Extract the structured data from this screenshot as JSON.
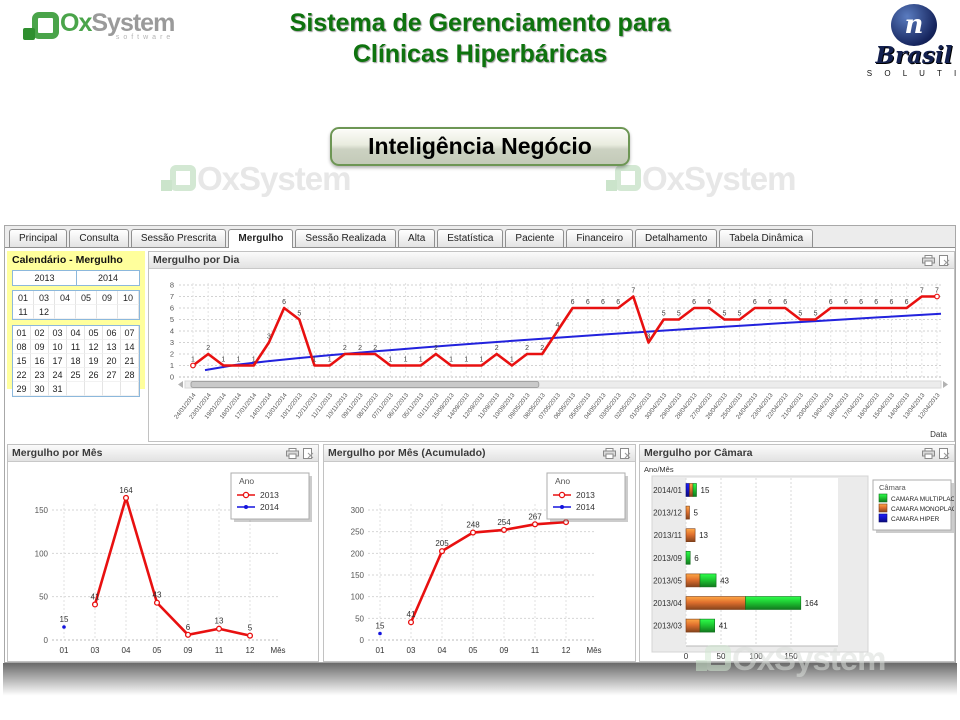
{
  "slide": {
    "title_line1": "Sistema de Gerenciamento para",
    "title_line2": "Clínicas Hiperbáricas",
    "button_label": "Inteligência Negócio",
    "watermark_text": "OxSystem"
  },
  "logo_left": {
    "prefix": "Ox",
    "suffix": "System",
    "sub": "software"
  },
  "logo_right": {
    "mark": "n",
    "name": "Brasil",
    "sub": "S O L U T I"
  },
  "tabs": {
    "items": [
      "Principal",
      "Consulta",
      "Sessão Prescrita",
      "Mergulho",
      "Sessão Realizada",
      "Alta",
      "Estatística",
      "Paciente",
      "Financeiro",
      "Detalhamento",
      "Tabela Dinâmica"
    ],
    "active": "Mergulho"
  },
  "calendar": {
    "title": "Calendário - Mergulho",
    "years": [
      "2013",
      "2014"
    ],
    "months": [
      "01",
      "03",
      "04",
      "05",
      "09",
      "10",
      "11",
      "12"
    ],
    "days": [
      "01",
      "02",
      "03",
      "04",
      "05",
      "06",
      "07",
      "08",
      "09",
      "10",
      "11",
      "12",
      "13",
      "14",
      "15",
      "16",
      "17",
      "18",
      "19",
      "20",
      "21",
      "22",
      "23",
      "24",
      "25",
      "26",
      "27",
      "28",
      "29",
      "30",
      "31"
    ]
  },
  "chart_data": [
    {
      "id": "daily",
      "type": "line",
      "title": "Mergulho por Dia",
      "xlabel": "Data",
      "ylim": [
        0,
        8
      ],
      "yticks": [
        0,
        1,
        2,
        3,
        4,
        5,
        6,
        7,
        8
      ],
      "categories": [
        "24/01/2014",
        "23/01/2014",
        "19/01/2014",
        "18/01/2014",
        "17/01/2014",
        "14/01/2014",
        "13/01/2014",
        "10/12/2013",
        "12/11/2013",
        "11/11/2013",
        "10/11/2013",
        "09/11/2013",
        "08/11/2013",
        "07/11/2013",
        "06/11/2013",
        "05/11/2013",
        "01/11/2013",
        "15/09/2013",
        "14/09/2013",
        "12/09/2013",
        "11/09/2013",
        "10/09/2013",
        "09/05/2013",
        "08/05/2013",
        "07/05/2013",
        "06/05/2013",
        "05/05/2013",
        "04/05/2013",
        "03/05/2013",
        "02/05/2013",
        "01/05/2013",
        "30/04/2013",
        "29/04/2013",
        "28/04/2013",
        "27/04/2013",
        "26/04/2013",
        "25/04/2013",
        "24/04/2013",
        "23/04/2013",
        "22/04/2013",
        "21/04/2013",
        "20/04/2013",
        "19/04/2013",
        "18/04/2013",
        "17/04/2013",
        "16/04/2013",
        "15/04/2013",
        "14/04/2013",
        "13/04/2013",
        "12/04/2013"
      ],
      "series": {
        "color": "#e81010",
        "values": [
          1,
          2,
          1,
          1,
          1,
          3,
          6,
          5,
          1,
          1,
          2,
          2,
          2,
          1,
          1,
          1,
          2,
          1,
          1,
          1,
          2,
          1,
          2,
          2,
          4,
          6,
          6,
          6,
          6,
          7,
          3,
          5,
          5,
          6,
          6,
          5,
          5,
          6,
          6,
          6,
          5,
          5,
          6,
          6,
          6,
          6,
          6,
          6,
          7,
          7
        ]
      },
      "trend_line": {
        "color": "#2222dd",
        "from": 0.6,
        "to": 5.5
      },
      "scrollbar": {
        "thumb_fraction": 0.46
      }
    },
    {
      "id": "monthly",
      "type": "line",
      "title": "Mergulho por Mês",
      "xlabel": "Mês",
      "legend_title": "Ano",
      "yticks": [
        0,
        50,
        100,
        150
      ],
      "categories": [
        "01",
        "03",
        "04",
        "05",
        "09",
        "11",
        "12"
      ],
      "series": [
        {
          "name": "2013",
          "color": "#e81010",
          "points": {
            "03": 41,
            "04": 164,
            "05": 43,
            "09": 6,
            "11": 13,
            "12": 5
          }
        },
        {
          "name": "2014",
          "color": "#1414dd",
          "points": {
            "01": 15
          }
        }
      ]
    },
    {
      "id": "monthly_acc",
      "type": "line",
      "title": "Mergulho por Mês (Acumulado)",
      "xlabel": "Mês",
      "legend_title": "Ano",
      "yticks": [
        0,
        50,
        100,
        150,
        200,
        250,
        300
      ],
      "categories": [
        "01",
        "03",
        "04",
        "05",
        "09",
        "11",
        "12"
      ],
      "series": [
        {
          "name": "2013",
          "color": "#e81010",
          "points": {
            "03": 41,
            "04": 205,
            "05": 248,
            "09": 254,
            "11": 267,
            "12": 272
          }
        },
        {
          "name": "2014",
          "color": "#1414dd",
          "points": {
            "01": 15
          }
        }
      ]
    },
    {
      "id": "camara",
      "type": "stacked_bar_horizontal",
      "title": "Mergulho por Câmara",
      "ylabel": "Ano/Mês",
      "legend_title": "Câmara",
      "xticks": [
        0,
        50,
        100,
        150
      ],
      "legend": [
        {
          "name": "CAMARA MULTIPLACE",
          "color": "#1ec832"
        },
        {
          "name": "CAMARA MONOPLACE",
          "color": "#e0702e"
        },
        {
          "name": "CAMARA HIPER",
          "color": "#1414cc"
        }
      ],
      "rows": [
        {
          "label": "2014/01",
          "total": 15,
          "segments": [
            {
              "name": "CAMARA HIPER",
              "value": 5
            },
            {
              "name": "CAMARA MONOPLACE",
              "value": 5
            },
            {
              "name": "CAMARA MULTIPLACE",
              "value": 5
            }
          ]
        },
        {
          "label": "2013/12",
          "total": 5,
          "segments": [
            {
              "name": "CAMARA MONOPLACE",
              "value": 5
            }
          ]
        },
        {
          "label": "2013/11",
          "total": 13,
          "segments": [
            {
              "name": "CAMARA MONOPLACE",
              "value": 13
            }
          ]
        },
        {
          "label": "2013/09",
          "total": 6,
          "segments": [
            {
              "name": "CAMARA MULTIPLACE",
              "value": 6
            }
          ]
        },
        {
          "label": "2013/05",
          "total": 43,
          "segments": [
            {
              "name": "CAMARA MONOPLACE",
              "value": 20
            },
            {
              "name": "CAMARA MULTIPLACE",
              "value": 23
            }
          ]
        },
        {
          "label": "2013/04",
          "total": 164,
          "segments": [
            {
              "name": "CAMARA MONOPLACE",
              "value": 85
            },
            {
              "name": "CAMARA MULTIPLACE",
              "value": 79
            }
          ]
        },
        {
          "label": "2013/03",
          "total": 41,
          "segments": [
            {
              "name": "CAMARA MONOPLACE",
              "value": 20
            },
            {
              "name": "CAMARA MULTIPLACE",
              "value": 21
            }
          ]
        }
      ]
    }
  ]
}
